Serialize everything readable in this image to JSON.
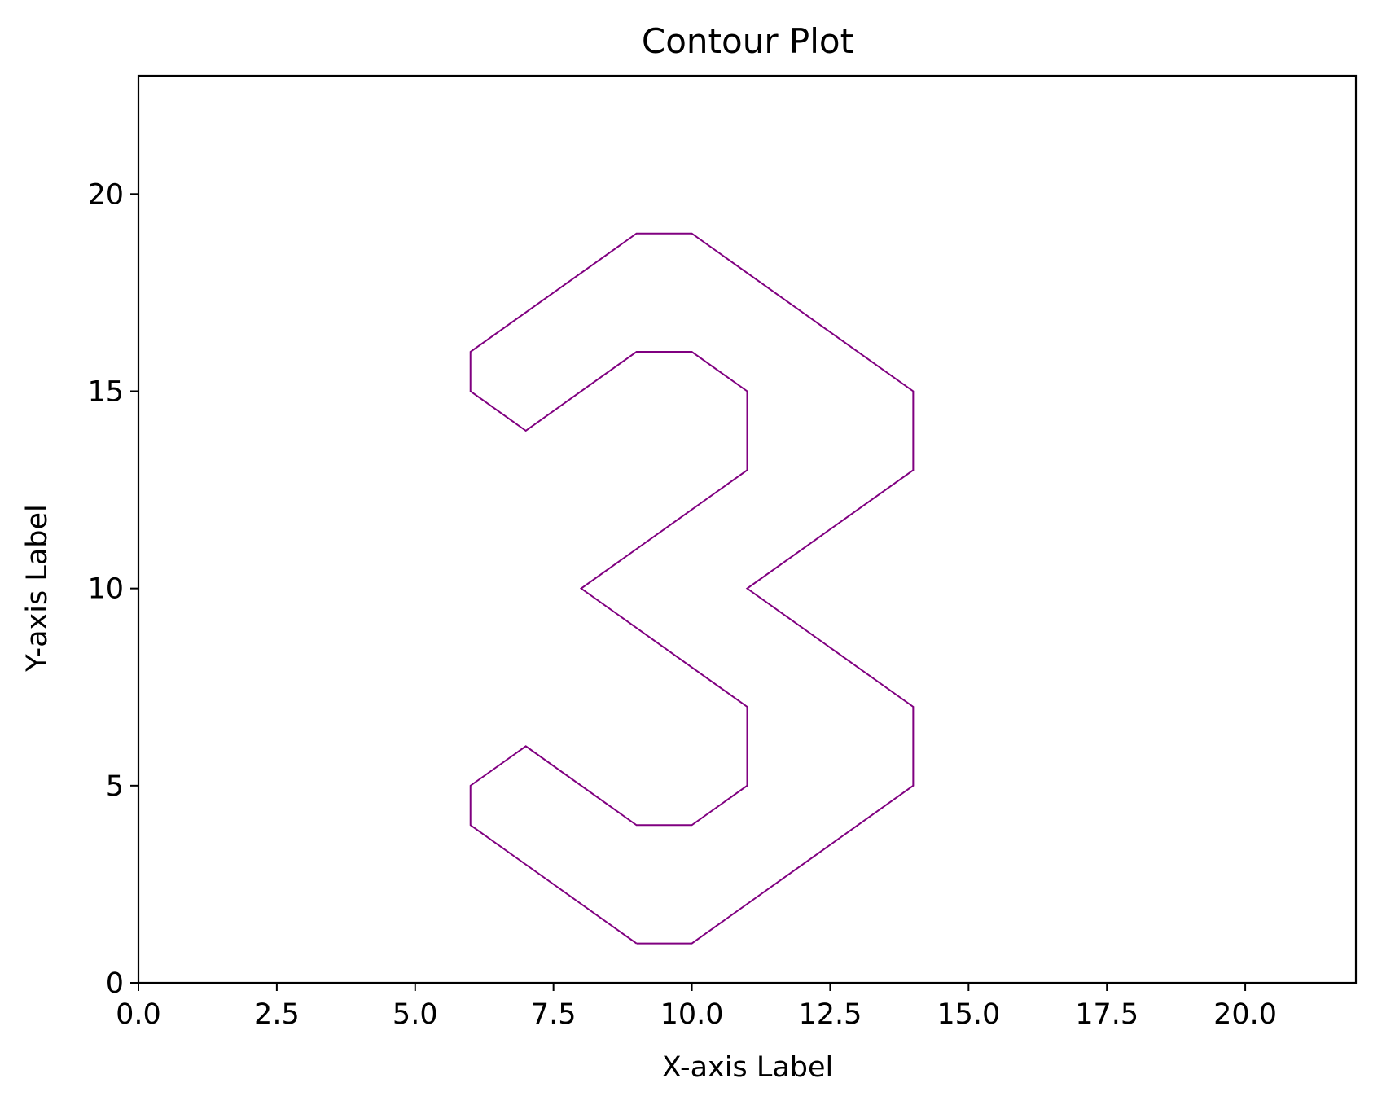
{
  "chart_data": {
    "type": "contour",
    "title": "Contour Plot",
    "xlabel": "X-axis Label",
    "ylabel": "Y-axis Label",
    "xlim": [
      0,
      22
    ],
    "ylim": [
      0,
      23
    ],
    "xticks": [
      0.0,
      2.5,
      5.0,
      7.5,
      10.0,
      12.5,
      15.0,
      17.5,
      20.0
    ],
    "xtick_labels": [
      "0.0",
      "2.5",
      "5.0",
      "7.5",
      "10.0",
      "12.5",
      "15.0",
      "17.5",
      "20.0"
    ],
    "yticks": [
      0,
      5,
      10,
      15,
      20
    ],
    "ytick_labels": [
      "0",
      "5",
      "10",
      "15",
      "20"
    ],
    "grid": false,
    "line_color": "#800080",
    "contour": [
      [
        9,
        1
      ],
      [
        10,
        1
      ],
      [
        14,
        5
      ],
      [
        14,
        7
      ],
      [
        11,
        10
      ],
      [
        14,
        13
      ],
      [
        14,
        15
      ],
      [
        10,
        19
      ],
      [
        9,
        19
      ],
      [
        6,
        16
      ],
      [
        6,
        15
      ],
      [
        7,
        14
      ],
      [
        9,
        16
      ],
      [
        10,
        16
      ],
      [
        11,
        15
      ],
      [
        11,
        13
      ],
      [
        8,
        10
      ],
      [
        11,
        7
      ],
      [
        11,
        5
      ],
      [
        10,
        4
      ],
      [
        9,
        4
      ],
      [
        7,
        6
      ],
      [
        6,
        5
      ],
      [
        6,
        4
      ],
      [
        9,
        1
      ]
    ]
  }
}
